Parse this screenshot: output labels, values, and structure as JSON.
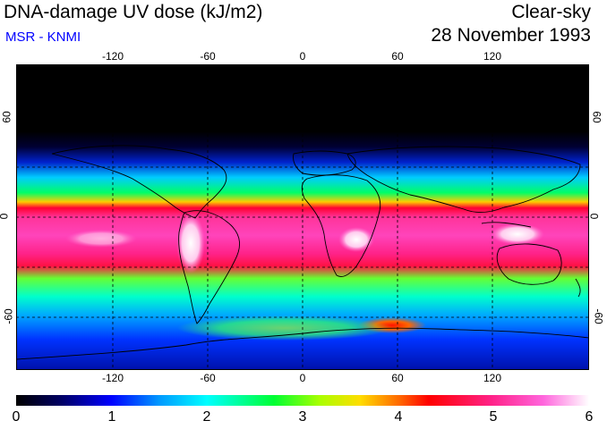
{
  "header": {
    "title": "DNA-damage UV dose (kJ/m2)",
    "subtitle": "MSR - KNMI",
    "condition": "Clear-sky",
    "date": "28 November 1993"
  },
  "map": {
    "lon_labels": [
      "-120",
      "-60",
      "0",
      "60",
      "120"
    ],
    "lat_labels": [
      "60",
      "0",
      "-60"
    ],
    "lat_labels_right": [
      "60",
      "0",
      "-60"
    ]
  },
  "colorbar": {
    "labels": [
      "0",
      "1",
      "2",
      "3",
      "4",
      "5",
      "6"
    ],
    "min": 0,
    "max": 6
  },
  "colors": {
    "subtitle": "#0000ff"
  }
}
